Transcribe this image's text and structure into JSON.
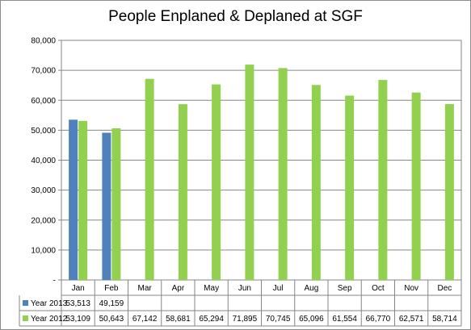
{
  "chart_data": {
    "type": "bar",
    "title": "People Enplaned & Deplaned at SGF",
    "categories": [
      "Jan",
      "Feb",
      "Mar",
      "Apr",
      "May",
      "Jun",
      "Jul",
      "Aug",
      "Sep",
      "Oct",
      "Nov",
      "Dec"
    ],
    "series": [
      {
        "name": "Year 2013",
        "color": "#4f81bd",
        "values": [
          53513,
          49159,
          null,
          null,
          null,
          null,
          null,
          null,
          null,
          null,
          null,
          null
        ],
        "labels": [
          "53,513",
          "49,159",
          "",
          "",
          "",
          "",
          "",
          "",
          "",
          "",
          "",
          ""
        ]
      },
      {
        "name": "Year 2012",
        "color": "#92d050",
        "values": [
          53109,
          50643,
          67142,
          58681,
          65294,
          71895,
          70745,
          65096,
          61554,
          66770,
          62571,
          58714
        ],
        "labels": [
          "53,109",
          "50,643",
          "67,142",
          "58,681",
          "65,294",
          "71,895",
          "70,745",
          "65,096",
          "61,554",
          "66,770",
          "62,571",
          "58,714"
        ]
      }
    ],
    "yticks": [
      "-",
      "10,000",
      "20,000",
      "30,000",
      "40,000",
      "50,000",
      "60,000",
      "70,000",
      "80,000"
    ],
    "ylim": [
      0,
      80000
    ],
    "grid": true,
    "legend": "data-table"
  }
}
